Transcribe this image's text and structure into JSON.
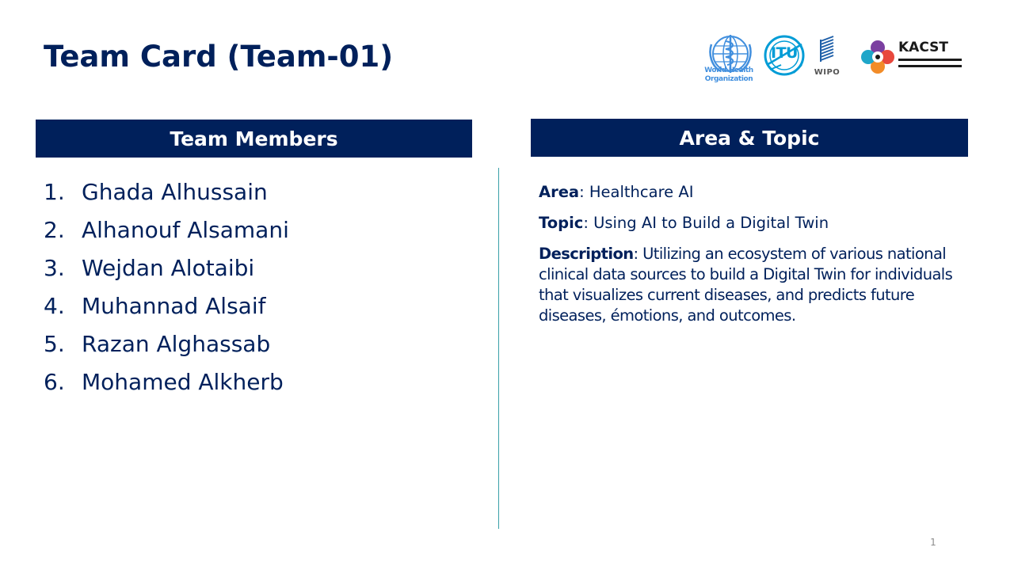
{
  "slide": {
    "title": "Team Card (Team-01)",
    "page_number": "1"
  },
  "logos": {
    "who": {
      "line1": "World Health",
      "line2": "Organization",
      "icon": "who-emblem-icon"
    },
    "itu": {
      "text": "ITU",
      "icon": "itu-globe-icon"
    },
    "wipo": {
      "text": "WIPO",
      "icon": "wipo-lines-icon"
    },
    "kacst": {
      "text": "KACST",
      "icon": "kacst-flower-icon"
    }
  },
  "members_section": {
    "header": "Team Members",
    "members": [
      {
        "num": "1.",
        "name": "Ghada Alhussain"
      },
      {
        "num": "2.",
        "name": "Alhanouf Alsamani"
      },
      {
        "num": "3.",
        "name": "Wejdan Alotaibi"
      },
      {
        "num": "4.",
        "name": "Muhannad Alsaif"
      },
      {
        "num": "5.",
        "name": "Razan Alghassab"
      },
      {
        "num": "6.",
        "name": "Mohamed Alkherb"
      }
    ]
  },
  "topic_section": {
    "header": "Area & Topic",
    "area_label": "Area",
    "area_value": ": Healthcare AI",
    "topic_label": "Topic",
    "topic_value": ": Using AI to Build a Digital Twin",
    "description_label": "Description",
    "description_value": ": Utilizing an ecosystem of various national clinical data sources to build a Digital Twin for individuals that visualizes current diseases, and predicts future diseases, émotions, and outcomes."
  },
  "colors": {
    "navy": "#00205b",
    "divider": "#3aa0a8",
    "who_blue": "#418fde",
    "itu_blue": "#009cd6",
    "wipo_blue": "#1e5fa8"
  }
}
